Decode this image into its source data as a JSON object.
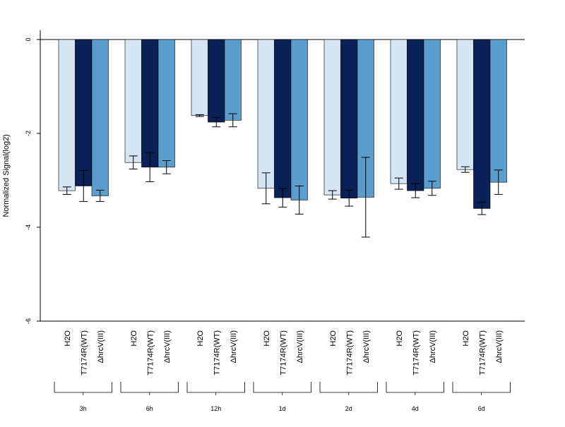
{
  "chart_data": {
    "type": "bar",
    "ylabel": "Normalized Signal(log2)",
    "ylim": [
      -6,
      0.2
    ],
    "yticks": [
      0,
      -2,
      -4,
      -6
    ],
    "grid": false,
    "groups": [
      "3h",
      "6h",
      "12h",
      "1d",
      "2d",
      "4d",
      "6d"
    ],
    "series": [
      {
        "name": "H2O",
        "color": "#d6e5f4",
        "values": [
          -3.22,
          -2.62,
          -1.62,
          -3.17,
          -3.31,
          -3.07,
          -2.77
        ],
        "errors": [
          0.08,
          0.14,
          0.02,
          0.33,
          0.09,
          0.12,
          0.06
        ]
      },
      {
        "name": "T7174R(WT)",
        "color": "#0a2158",
        "values": [
          -3.12,
          -2.72,
          -1.76,
          -3.37,
          -3.38,
          -3.22,
          -3.6
        ],
        "errors": [
          0.33,
          0.31,
          0.1,
          0.2,
          0.17,
          0.15,
          0.13
        ]
      },
      {
        "name": "ΔhrcV(III)",
        "color": "#5b9ecd",
        "values": [
          -3.33,
          -2.72,
          -1.72,
          -3.42,
          -3.36,
          -3.17,
          -3.04
        ],
        "errors": [
          0.12,
          0.14,
          0.14,
          0.3,
          0.85,
          0.15,
          0.26
        ]
      }
    ]
  }
}
